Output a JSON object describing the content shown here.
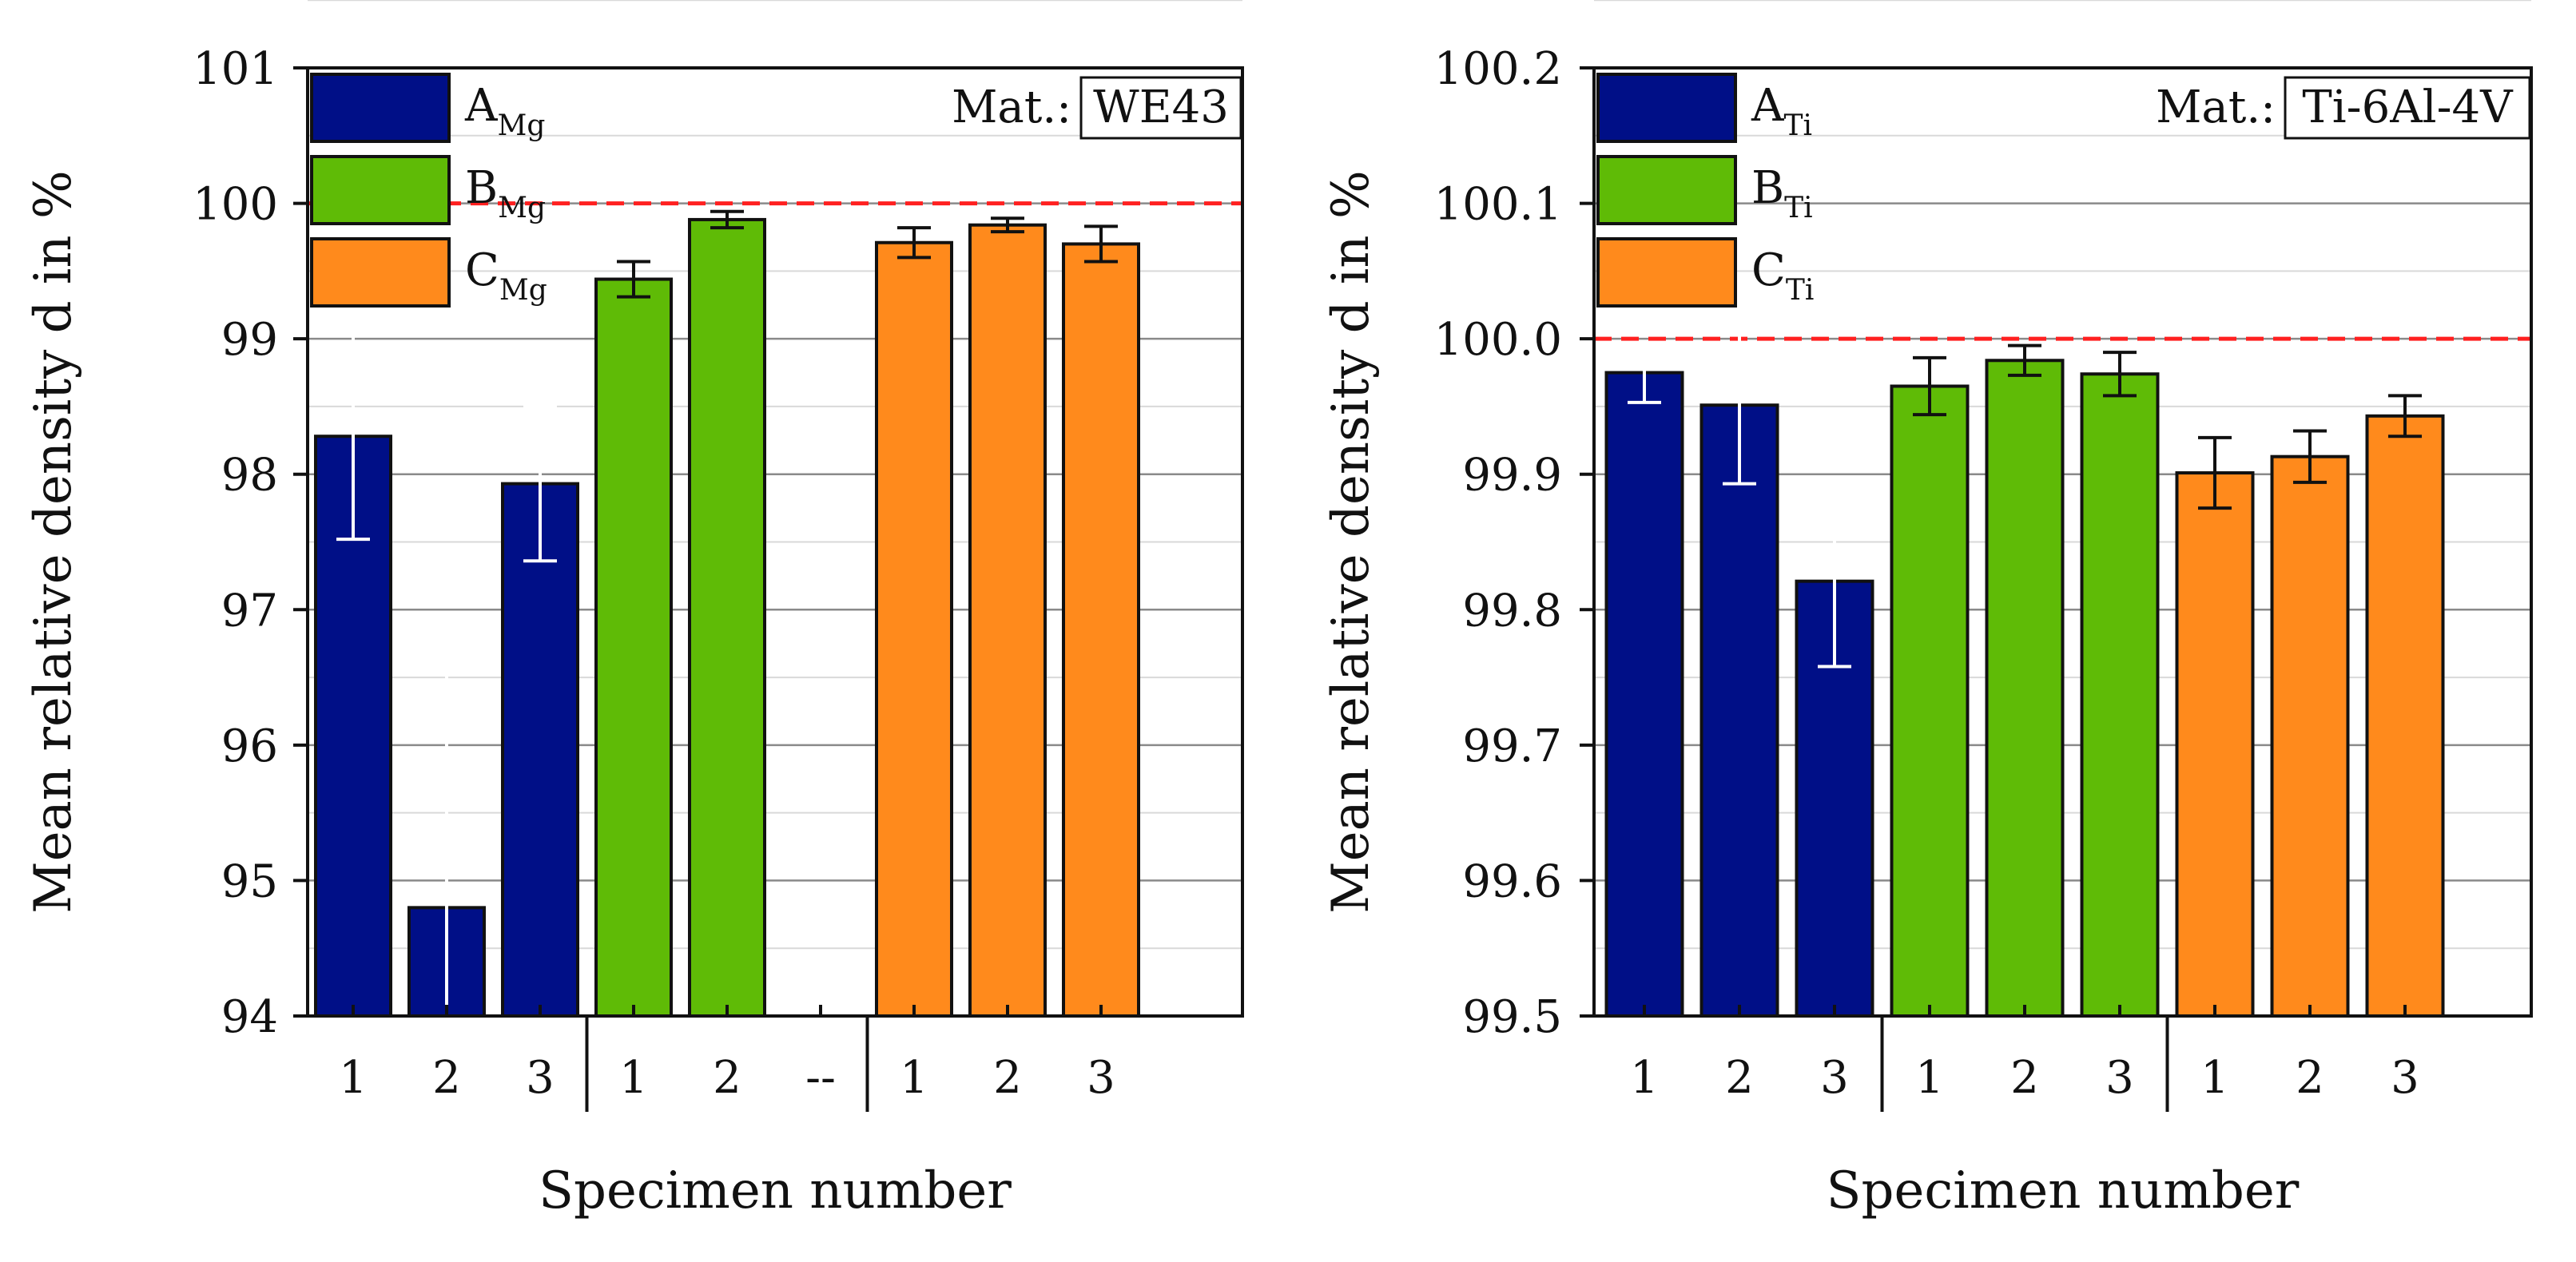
{
  "chart_data": [
    {
      "type": "bar",
      "id": "left",
      "material_label": "Mat.:",
      "material": "WE43",
      "xlabel": "Specimen number",
      "ylabel": "Mean relative density d in %",
      "ylim": [
        94,
        101
      ],
      "yticks": [
        "94",
        "95",
        "96",
        "97",
        "98",
        "99",
        "100",
        "101"
      ],
      "reference_line": 100,
      "grid": true,
      "legend_position": "top-left",
      "legend": [
        {
          "base": "A",
          "sub": "Mg",
          "color": "#000f87"
        },
        {
          "base": "B",
          "sub": "Mg",
          "color": "#5fbb06"
        },
        {
          "base": "C",
          "sub": "Mg",
          "color": "#ff8a1c"
        }
      ],
      "categories": [
        "1",
        "2",
        "3",
        "1",
        "2",
        "--",
        "1",
        "2",
        "3"
      ],
      "group_dividers_after": [
        2,
        5
      ],
      "bars": [
        {
          "group": 0,
          "value": 98.28,
          "err": 0.76,
          "err_color": "#ffffff"
        },
        {
          "group": 0,
          "value": 94.8,
          "err": 2.1,
          "err_color": "#ffffff"
        },
        {
          "group": 0,
          "value": 97.93,
          "err": 0.57,
          "err_color": "#ffffff"
        },
        {
          "group": 1,
          "value": 99.44,
          "err": 0.13,
          "err_color": "#111111"
        },
        {
          "group": 1,
          "value": 99.88,
          "err": 0.06,
          "err_color": "#111111"
        },
        null,
        {
          "group": 2,
          "value": 99.71,
          "err": 0.11,
          "err_color": "#111111"
        },
        {
          "group": 2,
          "value": 99.84,
          "err": 0.05,
          "err_color": "#111111"
        },
        {
          "group": 2,
          "value": 99.7,
          "err": 0.13,
          "err_color": "#111111"
        }
      ]
    },
    {
      "type": "bar",
      "id": "right",
      "material_label": "Mat.:",
      "material": "Ti-6Al-4V",
      "xlabel": "Specimen number",
      "ylabel": "Mean relative density d in %",
      "ylim": [
        99.5,
        100.2
      ],
      "yticks": [
        "99.5",
        "99.6",
        "99.7",
        "99.8",
        "99.9",
        "100.0",
        "100.1",
        "100.2"
      ],
      "reference_line": 100.0,
      "grid": true,
      "legend_position": "top-left",
      "legend": [
        {
          "base": "A",
          "sub": "Ti",
          "color": "#000f87"
        },
        {
          "base": "B",
          "sub": "Ti",
          "color": "#5fbb06"
        },
        {
          "base": "C",
          "sub": "Ti",
          "color": "#ff8a1c"
        }
      ],
      "categories": [
        "1",
        "2",
        "3",
        "1",
        "2",
        "3",
        "1",
        "2",
        "3"
      ],
      "group_dividers_after": [
        2,
        5
      ],
      "bars": [
        {
          "group": 0,
          "value": 99.975,
          "err": 0.022,
          "err_color": "#ffffff"
        },
        {
          "group": 0,
          "value": 99.951,
          "err": 0.058,
          "err_color": "#ffffff"
        },
        {
          "group": 0,
          "value": 99.821,
          "err": 0.063,
          "err_color": "#ffffff"
        },
        {
          "group": 1,
          "value": 99.965,
          "err": 0.021,
          "err_color": "#111111"
        },
        {
          "group": 1,
          "value": 99.984,
          "err": 0.011,
          "err_color": "#111111"
        },
        {
          "group": 1,
          "value": 99.974,
          "err": 0.016,
          "err_color": "#111111"
        },
        {
          "group": 2,
          "value": 99.901,
          "err": 0.026,
          "err_color": "#111111"
        },
        {
          "group": 2,
          "value": 99.913,
          "err": 0.019,
          "err_color": "#111111"
        },
        {
          "group": 2,
          "value": 99.943,
          "err": 0.015,
          "err_color": "#111111"
        }
      ]
    }
  ]
}
